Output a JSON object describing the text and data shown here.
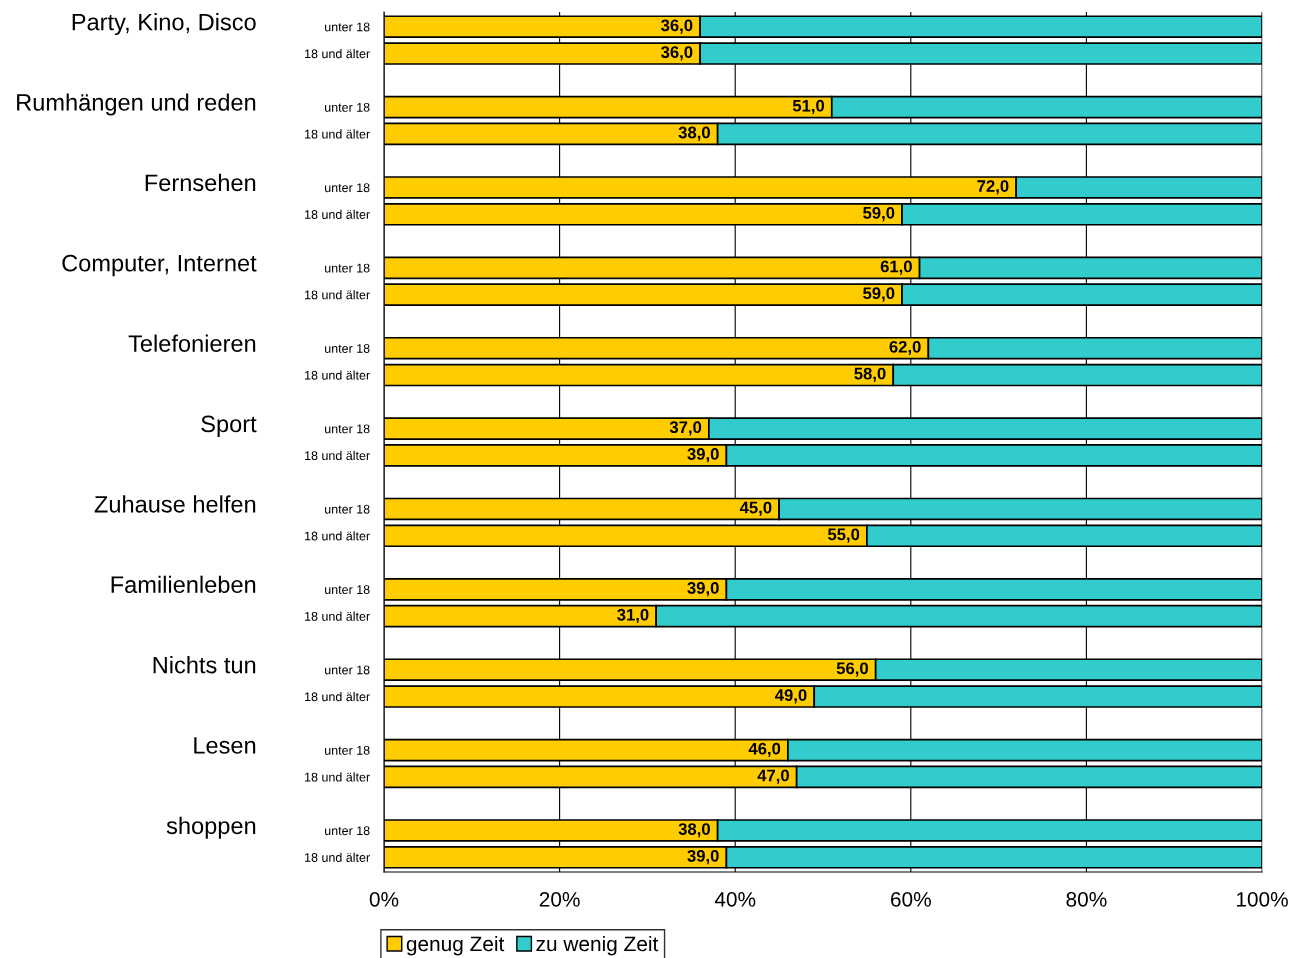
{
  "chart_data": {
    "type": "bar",
    "orientation": "horizontal",
    "stacked": true,
    "categories": [
      "unter 18",
      "18 und älter",
      null,
      "unter 18",
      "18 und älter",
      null,
      "unter 18",
      "18 und älter",
      null,
      "unter 18",
      "18 und älter",
      null,
      "unter 18",
      "18 und älter",
      null,
      "unter 18",
      "18 und älter",
      null,
      "unter 18",
      "18 und älter",
      null,
      "unter 18",
      "18 und älter",
      null,
      "unter 18",
      "18 und älter",
      null,
      "unter 18",
      "18 und älter",
      null,
      "unter 18",
      "18 und älter"
    ],
    "series": [
      {
        "name": "genug Zeit",
        "color": "#ffcc00",
        "values": [
          36.0,
          36.0,
          null,
          51.0,
          38.0,
          null,
          72.0,
          59.0,
          null,
          61.0,
          59.0,
          null,
          62.0,
          58.0,
          null,
          37.0,
          39.0,
          null,
          45.0,
          55.0,
          null,
          39.0,
          31.0,
          null,
          56.0,
          49.0,
          null,
          46.0,
          47.0,
          null,
          38.0,
          39.0
        ],
        "value_labels": [
          "36,0",
          "36,0",
          null,
          "51,0",
          "38,0",
          null,
          "72,0",
          "59,0",
          null,
          "61,0",
          "59,0",
          null,
          "62,0",
          "58,0",
          null,
          "37,0",
          "39,0",
          null,
          "45,0",
          "55,0",
          null,
          "39,0",
          "31,0",
          null,
          "56,0",
          "49,0",
          null,
          "46,0",
          "47,0",
          null,
          "38,0",
          "39,0"
        ]
      },
      {
        "name": "zu wenig Zeit",
        "color": "#33cccc",
        "values": [
          64.0,
          64.0,
          null,
          49.0,
          62.0,
          null,
          28.0,
          41.0,
          null,
          39.0,
          41.0,
          null,
          38.0,
          42.0,
          null,
          63.0,
          61.0,
          null,
          55.0,
          45.0,
          null,
          61.0,
          69.0,
          null,
          44.0,
          51.0,
          null,
          54.0,
          53.0,
          null,
          62.0,
          61.0
        ]
      }
    ],
    "annotations": [
      "Party, Kino, Disco",
      "Rumhängen und reden",
      "Fernsehen",
      "Computer, Internet",
      "Telefonieren",
      "Sport",
      "Zuhause helfen",
      "Familienleben",
      "Nichts tun",
      "Lesen",
      "shoppen"
    ],
    "xlim": [
      0,
      100
    ],
    "xticks": [
      {
        "value": 0,
        "label": "0%"
      },
      {
        "value": 20,
        "label": "20%"
      },
      {
        "value": 40,
        "label": "40%"
      },
      {
        "value": 60,
        "label": "60%"
      },
      {
        "value": 80,
        "label": "80%"
      },
      {
        "value": 100,
        "label": "100%"
      }
    ],
    "grid": "x",
    "legend": "bottom"
  }
}
